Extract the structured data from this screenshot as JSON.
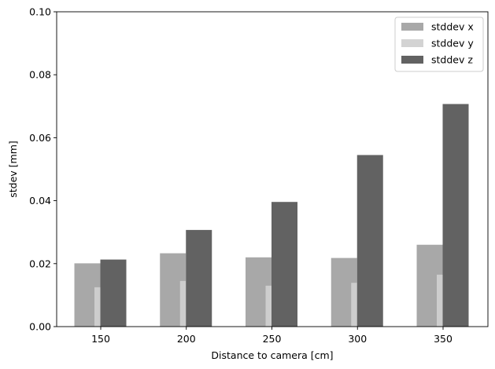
{
  "chart_data": {
    "type": "bar",
    "xlabel": "Distance to camera [cm]",
    "ylabel": "stdev [mm]",
    "categories": [
      "150",
      "200",
      "250",
      "300",
      "350"
    ],
    "ylim": [
      0,
      0.1
    ],
    "yticks": [
      "0.00",
      "0.02",
      "0.04",
      "0.06",
      "0.08",
      "0.10"
    ],
    "legend_position": "top-right",
    "grid": false,
    "series": [
      {
        "name": "stddev x",
        "color": "#a8a8a8",
        "values": [
          0.0201,
          0.0233,
          0.022,
          0.0218,
          0.026
        ]
      },
      {
        "name": "stddev y",
        "color": "#d3d3d3",
        "values": [
          0.0125,
          0.0145,
          0.013,
          0.0139,
          0.0165
        ]
      },
      {
        "name": "stddev z",
        "color": "#626262",
        "values": [
          0.0213,
          0.0307,
          0.0396,
          0.0545,
          0.0707
        ]
      }
    ]
  }
}
